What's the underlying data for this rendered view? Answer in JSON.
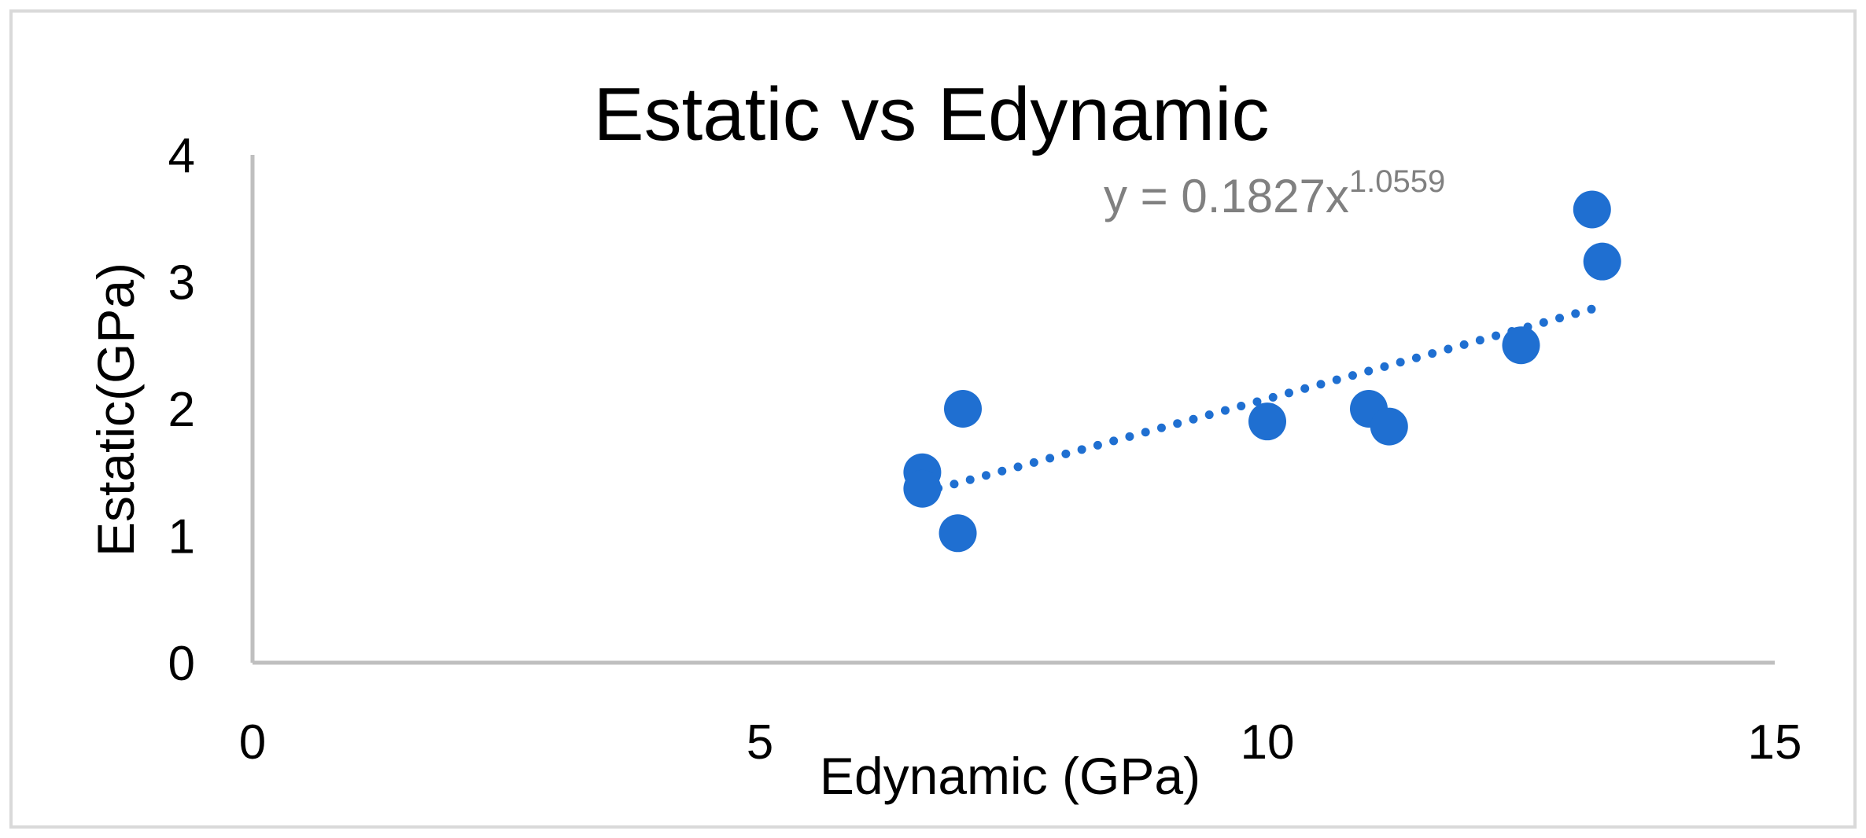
{
  "chart_data": {
    "type": "scatter",
    "title": "Estatic vs Edynamic",
    "xlabel": "Edynamic (GPa)",
    "ylabel": "Estatic(GPa)",
    "xlim": [
      0,
      15
    ],
    "ylim": [
      0,
      4
    ],
    "x_ticks": [
      "0",
      "5",
      "10",
      "15"
    ],
    "y_ticks": [
      "0",
      "1",
      "2",
      "3",
      "4"
    ],
    "grid": false,
    "legend": "none",
    "series": [
      {
        "points": [
          {
            "x": 6.6,
            "y": 1.5
          },
          {
            "x": 6.6,
            "y": 1.37
          },
          {
            "x": 7.0,
            "y": 2.0
          },
          {
            "x": 6.95,
            "y": 1.02
          },
          {
            "x": 10.0,
            "y": 1.9
          },
          {
            "x": 11.0,
            "y": 2.0
          },
          {
            "x": 11.2,
            "y": 1.86
          },
          {
            "x": 12.5,
            "y": 2.5
          },
          {
            "x": 13.2,
            "y": 3.57
          },
          {
            "x": 13.3,
            "y": 3.16
          }
        ]
      }
    ],
    "trendline": {
      "type": "power",
      "coefficient": 0.1827,
      "exponent": 1.0559,
      "x_range": [
        6.6,
        13.3
      ],
      "equation_prefix": "y = 0.1827x",
      "equation_exponent": "1.0559"
    },
    "colors": {
      "marker": "#1f6fd1",
      "axis": "#bfbfbf",
      "equation": "#808080",
      "text": "#000000"
    }
  }
}
